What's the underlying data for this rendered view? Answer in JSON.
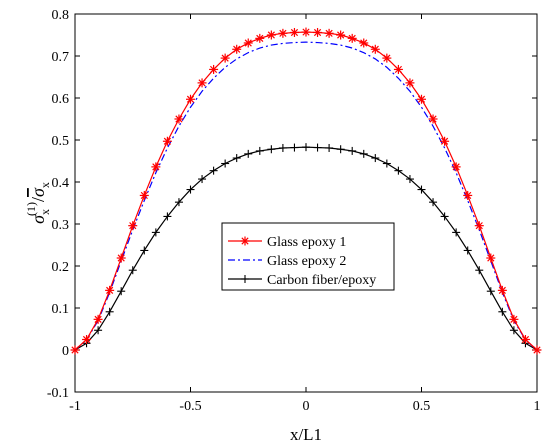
{
  "chart_data": {
    "type": "line",
    "xlabel": "x/L1",
    "ylabel": {
      "main": "σ",
      "main_sub": "x",
      "main_sup": "(1)",
      "slash": "/",
      "den": "σ",
      "den_sub": "x"
    },
    "xlim": [
      -1,
      1
    ],
    "ylim": [
      -0.1,
      0.8
    ],
    "xticks": [
      "-1",
      "-0.5",
      "0",
      "0.5",
      "1"
    ],
    "yticks": [
      "-0.1",
      "0",
      "0.1",
      "0.2",
      "0.3",
      "0.4",
      "0.5",
      "0.6",
      "0.7",
      "0.8"
    ],
    "legend_position": "center",
    "x": [
      -1,
      -0.95,
      -0.9,
      -0.85,
      -0.8,
      -0.75,
      -0.7,
      -0.65,
      -0.6,
      -0.55,
      -0.5,
      -0.45,
      -0.4,
      -0.35,
      -0.3,
      -0.25,
      -0.2,
      -0.15,
      -0.1,
      -0.05,
      0,
      0.05,
      0.1,
      0.15,
      0.2,
      0.25,
      0.3,
      0.35,
      0.4,
      0.45,
      0.5,
      0.55,
      0.6,
      0.65,
      0.7,
      0.75,
      0.8,
      0.85,
      0.9,
      0.95,
      1
    ],
    "series": [
      {
        "name": "Glass epoxy 1",
        "color": "#ff0000",
        "line_style": "solid",
        "marker": "asterisk",
        "values": [
          0.0,
          0.025,
          0.073,
          0.142,
          0.219,
          0.296,
          0.368,
          0.436,
          0.497,
          0.55,
          0.597,
          0.636,
          0.668,
          0.695,
          0.716,
          0.731,
          0.742,
          0.75,
          0.754,
          0.756,
          0.757,
          0.756,
          0.754,
          0.75,
          0.742,
          0.731,
          0.716,
          0.695,
          0.668,
          0.636,
          0.597,
          0.55,
          0.497,
          0.436,
          0.368,
          0.296,
          0.219,
          0.142,
          0.073,
          0.025,
          0.0
        ]
      },
      {
        "name": "Glass epoxy 2",
        "color": "#0000ff",
        "line_style": "dash-dot",
        "marker": "none",
        "values": [
          0.0,
          0.024,
          0.07,
          0.137,
          0.212,
          0.286,
          0.356,
          0.422,
          0.481,
          0.533,
          0.578,
          0.616,
          0.647,
          0.673,
          0.693,
          0.708,
          0.719,
          0.726,
          0.73,
          0.732,
          0.733,
          0.732,
          0.73,
          0.726,
          0.719,
          0.708,
          0.693,
          0.673,
          0.647,
          0.616,
          0.578,
          0.533,
          0.481,
          0.422,
          0.356,
          0.286,
          0.212,
          0.137,
          0.07,
          0.024,
          0.0
        ]
      },
      {
        "name": "Carbon fiber/epoxy",
        "color": "#000000",
        "line_style": "solid",
        "marker": "plus",
        "values": [
          0.0,
          0.016,
          0.047,
          0.091,
          0.14,
          0.19,
          0.237,
          0.28,
          0.318,
          0.352,
          0.382,
          0.407,
          0.427,
          0.444,
          0.457,
          0.467,
          0.474,
          0.478,
          0.481,
          0.482,
          0.483,
          0.482,
          0.481,
          0.478,
          0.474,
          0.467,
          0.457,
          0.444,
          0.427,
          0.407,
          0.382,
          0.352,
          0.318,
          0.28,
          0.237,
          0.19,
          0.14,
          0.091,
          0.047,
          0.016,
          0.0
        ]
      }
    ]
  }
}
